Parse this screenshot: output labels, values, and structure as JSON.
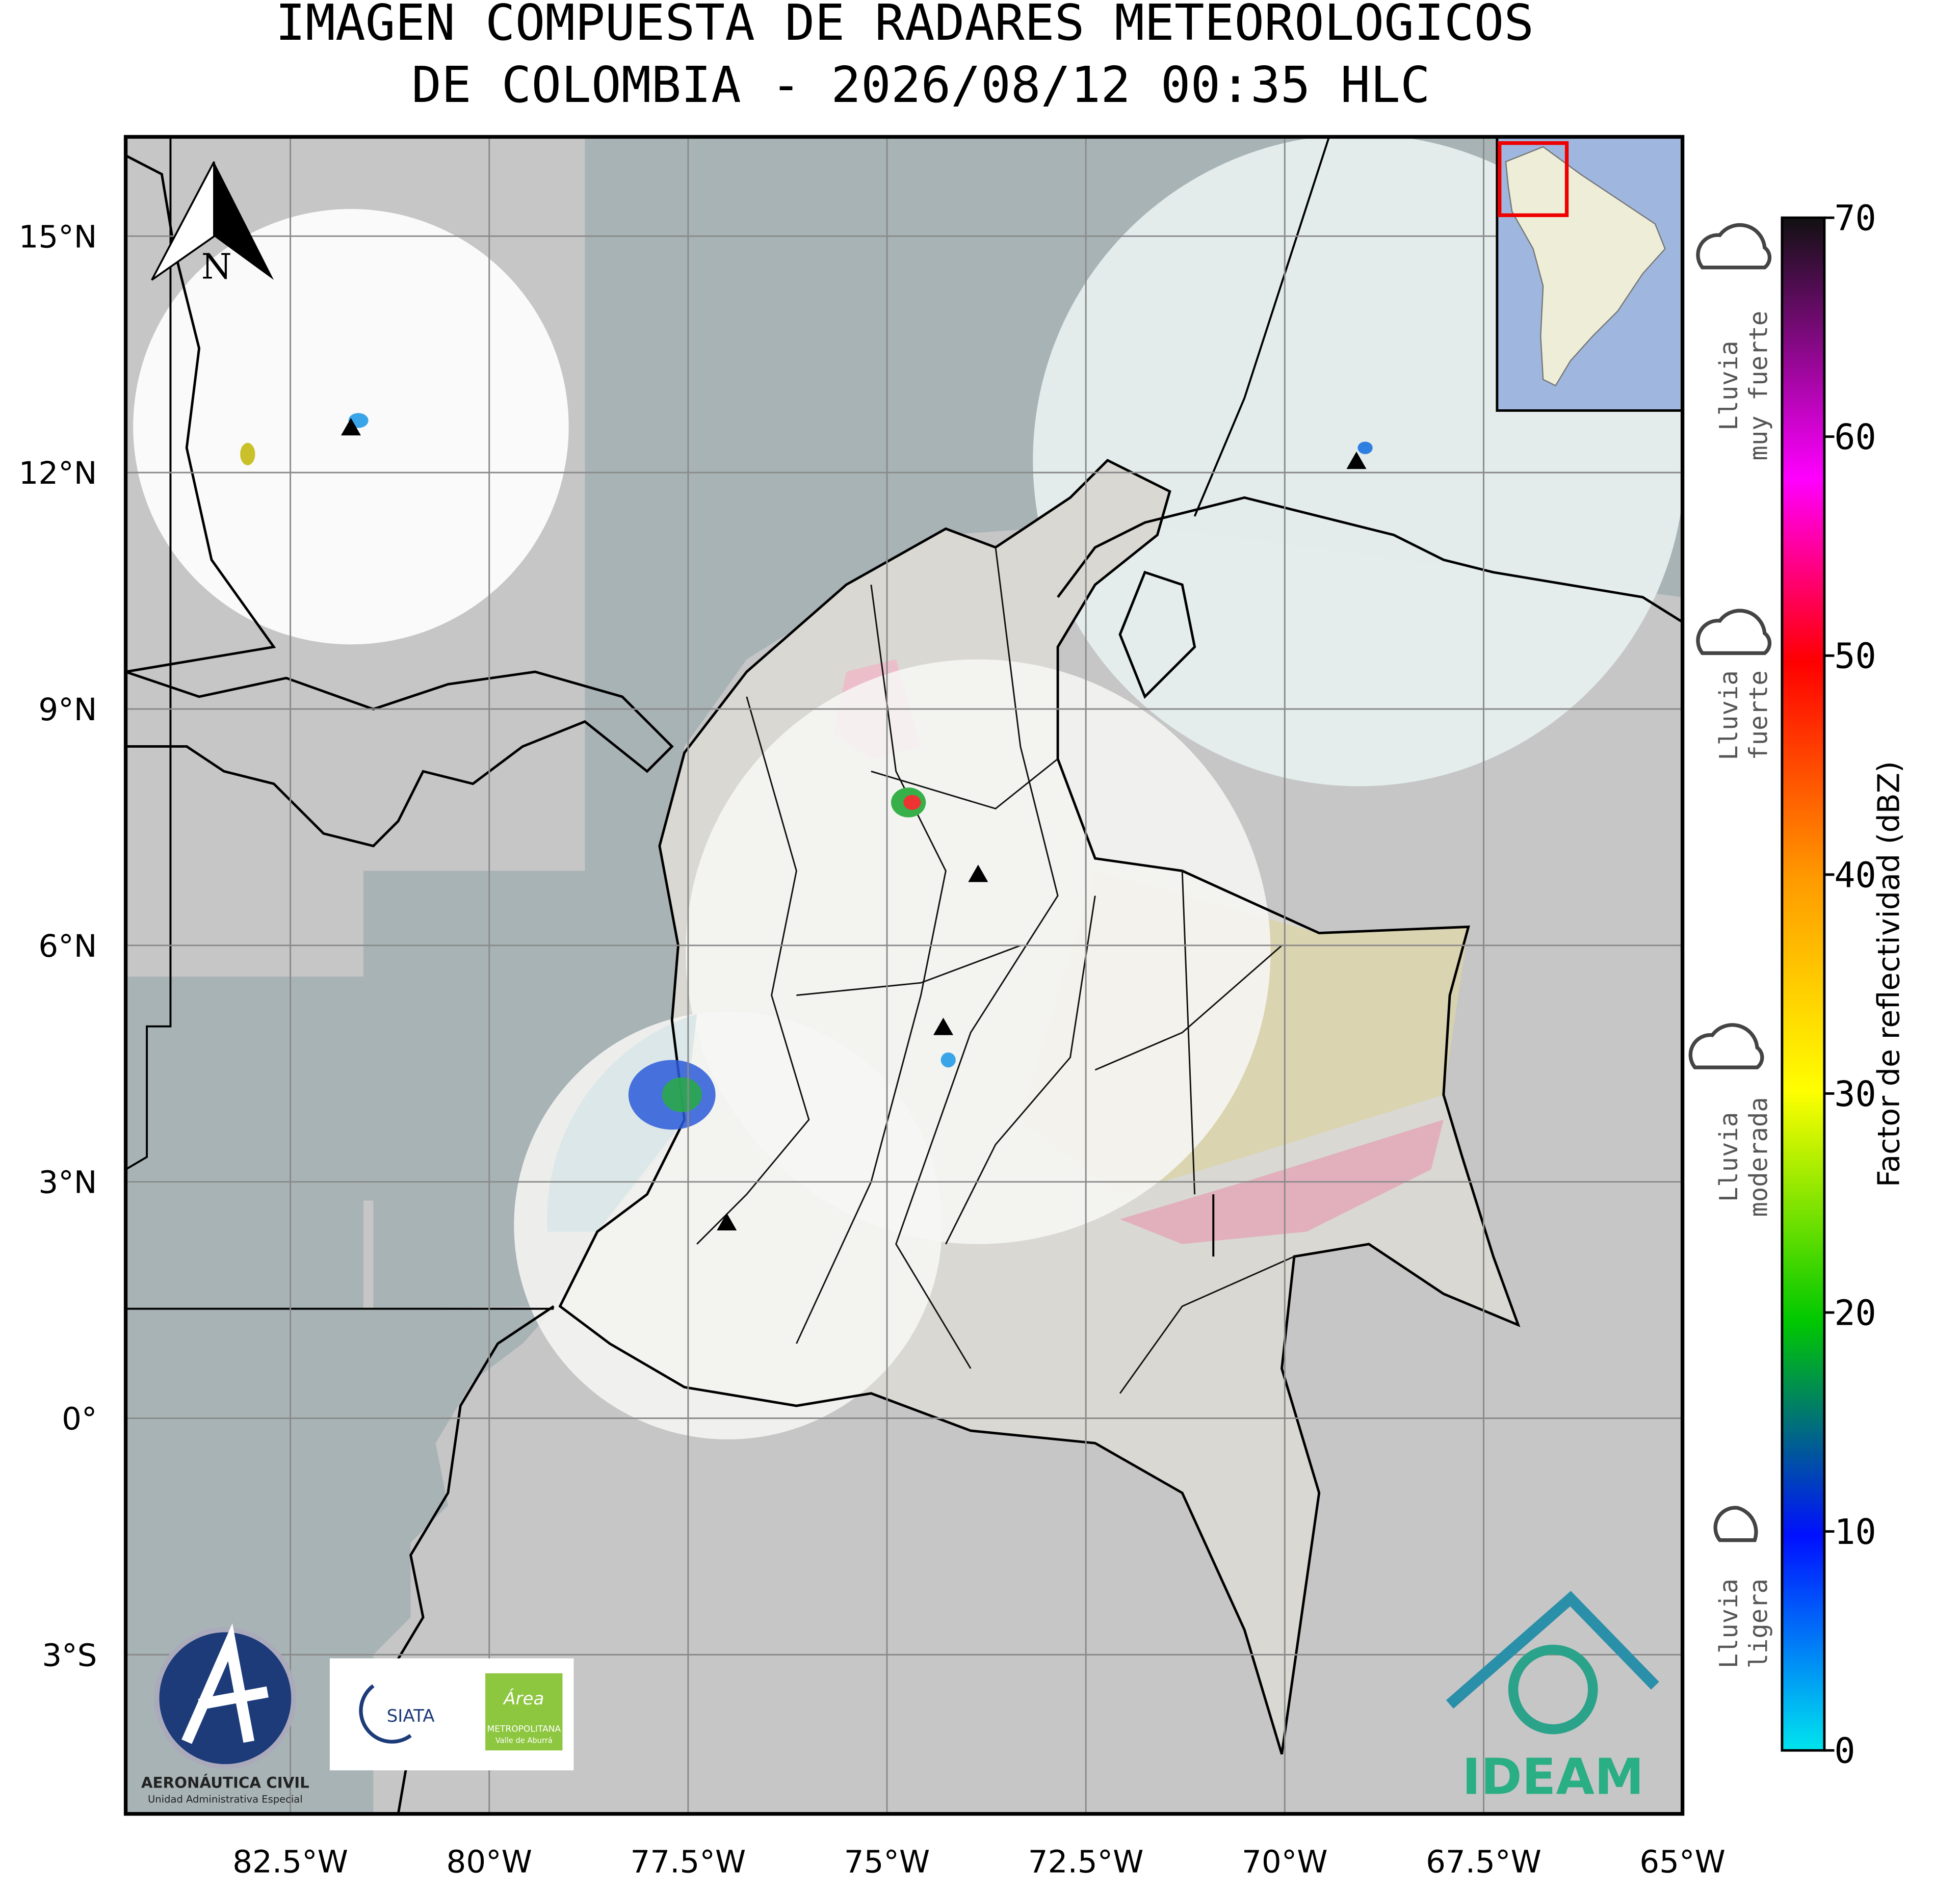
{
  "header": {
    "title_lines": [
      "IMAGEN COMPUESTA DE RADARES METEOROLOGICOS",
      "DE COLOMBIA - 2026/08/12 00:35 HLC"
    ]
  },
  "map": {
    "xlim": [
      -84.57,
      -65
    ],
    "ylim": [
      -5.02,
      16.26
    ],
    "xticks": [
      {
        "value": -82.5,
        "label": "82.5°W"
      },
      {
        "value": -80,
        "label": "80°W"
      },
      {
        "value": -77.5,
        "label": "77.5°W"
      },
      {
        "value": -75,
        "label": "75°W"
      },
      {
        "value": -72.5,
        "label": "72.5°W"
      },
      {
        "value": -70,
        "label": "70°W"
      },
      {
        "value": -67.5,
        "label": "67.5°W"
      },
      {
        "value": -65,
        "label": "65°W"
      }
    ],
    "yticks": [
      {
        "value": 15,
        "label": "15°N"
      },
      {
        "value": 12,
        "label": "12°N"
      },
      {
        "value": 9,
        "label": "9°N"
      },
      {
        "value": 6,
        "label": "6°N"
      },
      {
        "value": 3,
        "label": "3°N"
      },
      {
        "value": 0,
        "label": "0°"
      },
      {
        "value": -3,
        "label": "3°S"
      }
    ],
    "grid": true,
    "north_label": "N"
  },
  "colorbar": {
    "label": "Factor de reflectividad (dBZ)",
    "lim": [
      0,
      70
    ],
    "ticks": [
      0,
      10,
      20,
      30,
      40,
      50,
      60,
      70
    ]
  },
  "rain_levels": [
    {
      "lines": [
        "Lluvia",
        "muy fuerte"
      ]
    },
    {
      "lines": [
        "Lluvia",
        "fuerte"
      ]
    },
    {
      "lines": [
        "Lluvia",
        "moderada"
      ]
    },
    {
      "lines": [
        "Lluvia",
        "ligera"
      ]
    }
  ],
  "logos": {
    "aerocivil": [
      "AERONÁUTICA CIVIL",
      "Unidad Administrativa Especial"
    ],
    "siata": "SIATA",
    "area": [
      "Área",
      "METROPOLITANA",
      "Valle de Aburrá"
    ],
    "ideam": "IDEAM"
  }
}
